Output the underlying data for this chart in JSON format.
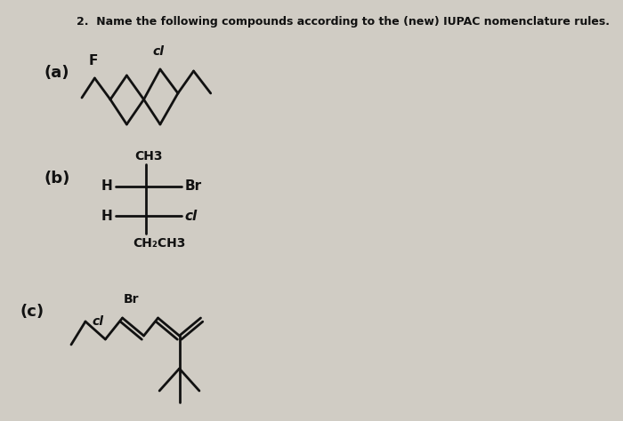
{
  "title": "2.  Name the following compounds according to the (new) IUPAC nomenclature rules.",
  "bg_color": "#d0ccc4",
  "text_color": "#111111",
  "title_fontsize": 9.0,
  "lw": 2.0,
  "part_a_label": "(a)",
  "part_a_F": "F",
  "part_a_Cl": "cl",
  "part_b_label": "(b)",
  "part_b_CH3": "CH3",
  "part_b_H1": "H",
  "part_b_Br": "Br",
  "part_b_H2": "H",
  "part_b_Cl": "cl",
  "part_b_bottom": "CH₂CH3",
  "part_c_label": "(c)",
  "part_c_Cl": "cl",
  "part_c_Br": "Br"
}
